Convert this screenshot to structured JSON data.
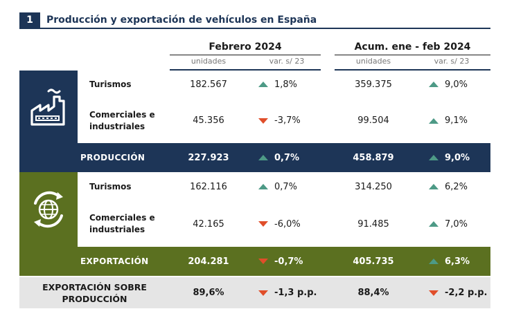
{
  "title": {
    "number": "1",
    "text": "Producción y exportación de vehículos en España"
  },
  "headers": {
    "group1": "Febrero 2024",
    "group2": "Acum. ene - feb 2024",
    "units": "unidades",
    "var": "var. s/ 23"
  },
  "produccion": {
    "turismos": {
      "label": "Turismos",
      "v1": "182.567",
      "p1": "1,8%",
      "v2": "359.375",
      "p2": "9,0%"
    },
    "comerciales": {
      "label1": "Comerciales e",
      "label2": "industriales",
      "v1": "45.356",
      "p1": "-3,7%",
      "v2": "99.504",
      "p2": "9,1%"
    },
    "total": {
      "label": "PRODUCCIÓN",
      "v1": "227.923",
      "p1": "0,7%",
      "v2": "458.879",
      "p2": "9,0%"
    }
  },
  "exportacion": {
    "turismos": {
      "label": "Turismos",
      "v1": "162.116",
      "p1": "0,7%",
      "v2": "314.250",
      "p2": "6,2%"
    },
    "comerciales": {
      "label1": "Comerciales e",
      "label2": "industriales",
      "v1": "42.165",
      "p1": "-6,0%",
      "v2": "91.485",
      "p2": "7,0%"
    },
    "total": {
      "label": "EXPORTACIÓN",
      "v1": "204.281",
      "p1": "-0,7%",
      "v2": "405.735",
      "p2": "6,3%"
    }
  },
  "ratio": {
    "label1": "EXPORTACIÓN SOBRE",
    "label2": "PRODUCCIÓN",
    "v1": "89,6%",
    "p1": "-1,3 p.p.",
    "v2": "88,4%",
    "p2": "-2,2 p.p."
  },
  "colors": {
    "navy": "#1d3557",
    "olive": "#5b7020",
    "up": "#4d9a86",
    "down": "#e04e2a",
    "footer": "#e5e5e5"
  },
  "icons": {
    "produccion": "factory-icon",
    "exportacion": "globe-export-icon"
  }
}
